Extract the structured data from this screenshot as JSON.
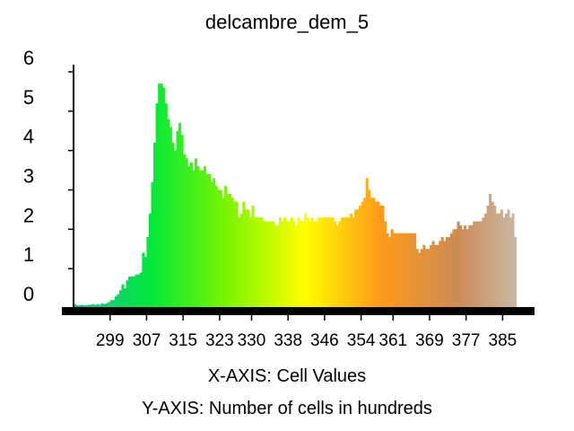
{
  "chart_data": {
    "type": "bar",
    "title": "delcambre_dem_5",
    "xlabel": "X-AXIS: Cell Values",
    "ylabel": "Y-AXIS: Number of cells in hundreds",
    "x_range": [
      291,
      392
    ],
    "ylim": [
      0,
      6
    ],
    "x_ticks": [
      299,
      307,
      315,
      323,
      330,
      338,
      346,
      354,
      361,
      369,
      377,
      385
    ],
    "y_ticks": [
      0,
      1,
      2,
      3,
      4,
      5,
      6
    ],
    "grid": false,
    "legend": "none",
    "color_ramp": [
      "#2ab8a0",
      "#00e83a",
      "#7cf400",
      "#ffff00",
      "#ff9a1a",
      "#cc8a55",
      "#c9c5be"
    ],
    "series": [
      {
        "x_start": 291,
        "x_step": 0.5,
        "values": [
          0.1,
          0.07,
          0.07,
          0.08,
          0.07,
          0.07,
          0.08,
          0.08,
          0.1,
          0.08,
          0.1,
          0.08,
          0.12,
          0.1,
          0.12,
          0.15,
          0.2,
          0.2,
          0.3,
          0.35,
          0.45,
          0.6,
          0.5,
          0.7,
          0.8,
          0.8,
          0.8,
          0.85,
          0.85,
          0.9,
          1.4,
          1.3,
          1.8,
          2.4,
          3.2,
          4.2,
          5.2,
          5.7,
          5.7,
          5.6,
          5.2,
          4.8,
          4.6,
          4.2,
          4.0,
          4.5,
          4.7,
          4.4,
          3.9,
          3.8,
          3.6,
          3.7,
          3.5,
          3.8,
          3.6,
          3.5,
          3.5,
          3.6,
          3.4,
          3.4,
          3.2,
          3.3,
          3.1,
          3.0,
          3.0,
          2.8,
          3.1,
          2.9,
          2.9,
          2.8,
          2.7,
          2.7,
          2.3,
          2.4,
          2.7,
          2.5,
          2.5,
          2.3,
          2.6,
          2.3,
          2.3,
          2.3,
          2.3,
          2.2,
          2.2,
          2.2,
          2.2,
          2.2,
          2.1,
          2.1,
          2.3,
          2.2,
          2.3,
          2.2,
          2.2,
          2.3,
          2.2,
          2.1,
          2.3,
          2.2,
          2.2,
          2.4,
          2.3,
          2.2,
          2.3,
          2.2,
          2.2,
          2.3,
          2.3,
          2.3,
          2.3,
          2.3,
          2.3,
          2.3,
          2.2,
          2.1,
          2.2,
          2.3,
          2.3,
          2.3,
          2.3,
          2.4,
          2.3,
          2.5,
          2.5,
          2.6,
          2.7,
          2.8,
          3.3,
          3.0,
          2.8,
          2.8,
          2.7,
          2.7,
          2.6,
          2.6,
          2.2,
          1.9,
          1.8,
          2.0,
          1.9,
          1.9,
          1.9,
          1.9,
          1.9,
          1.9,
          1.9,
          1.9,
          1.9,
          1.9,
          1.5,
          1.4,
          1.5,
          1.6,
          1.5,
          1.5,
          1.6,
          1.7,
          1.6,
          1.6,
          1.7,
          1.8,
          1.7,
          1.8,
          1.8,
          1.9,
          2.0,
          2.0,
          2.2,
          2.1,
          2.0,
          2.1,
          2.0,
          2.1,
          2.1,
          2.2,
          2.2,
          2.2,
          2.2,
          2.3,
          2.4,
          2.6,
          2.9,
          2.7,
          2.6,
          2.4,
          2.4,
          2.5,
          2.3,
          2.4,
          2.5,
          2.3,
          2.4,
          1.8
        ]
      }
    ]
  }
}
